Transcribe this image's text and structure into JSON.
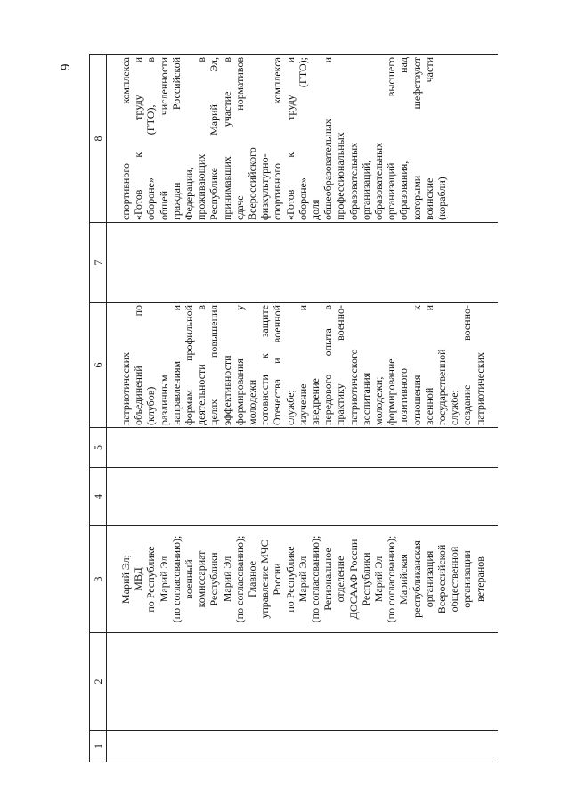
{
  "page_number": "9",
  "table": {
    "header": [
      "1",
      "2",
      "3",
      "4",
      "5",
      "6",
      "7",
      "8"
    ],
    "row": {
      "col3": [
        "Марий Эл;",
        "МВД",
        "по Республике",
        "Марий Эл",
        "(по согласованию);",
        "военный",
        "комиссариат",
        "Республики",
        "Марий Эл",
        "(по согласованию);",
        "Главное",
        "управление МЧС",
        "России",
        "по Республике",
        "Марий Эл",
        "(по согласованию);",
        "Региональное",
        "отделение",
        "ДОСААФ России",
        "Республики",
        "Марий Эл",
        "(по согласованию);",
        "Марийская",
        "республиканская",
        "организация",
        "Всероссийской",
        "общественной",
        "организации",
        "ветеранов"
      ],
      "col6": [
        "патриотических",
        "объединений по",
        "(клубов)",
        "различным",
        "направлениям и",
        "формам профильной",
        "деятельности в",
        "целях повышения",
        "эффективности",
        "формирования у",
        "молодежи",
        "готовности к защите",
        "Отечества и военной",
        "службе;",
        "изучение и",
        "внедрение",
        "передового опыта в",
        "практику военно-",
        "патриотического",
        "воспитания",
        "молодежи;",
        "формирование",
        "позитивного",
        "отношения к",
        "военной и",
        "государственной",
        "службе;",
        "создание военно-",
        "патриотических"
      ],
      "col8": [
        "спортивного комплекса",
        "«Готов к труду и",
        "обороне» (ГТО), в",
        "общей численности",
        "граждан Российской",
        "Федерации,",
        "проживающих в",
        "Республике Марий Эл,",
        "принимавших участие в",
        "сдаче нормативов",
        "Всероссийского",
        "физкультурно-",
        "спортивного комплекса",
        "«Готов к труду и",
        "обороне» (ГТО);",
        "доля",
        "общеобразовательных и",
        "профессиональных",
        "образовательных",
        "организаций,",
        "образовательных",
        "организаций высшего",
        "образования, над",
        "которыми шефствуют",
        "воинские части",
        "(корабли)"
      ]
    }
  }
}
